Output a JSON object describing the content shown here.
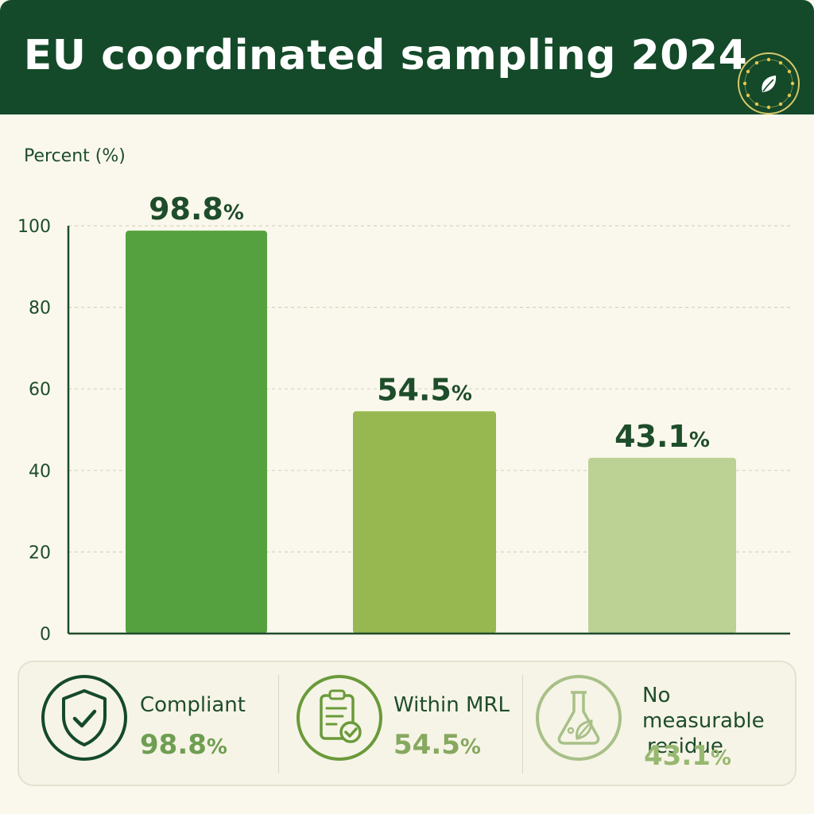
{
  "header": {
    "title": "EU coordinated sampling 2024"
  },
  "chart_data": {
    "type": "bar",
    "categories": [
      "Compliant",
      "Within MRL",
      "No measurable residue"
    ],
    "values": [
      98.8,
      54.5,
      43.1
    ],
    "data_labels": [
      "98.8",
      "54.5",
      "43.1"
    ],
    "unit": "%",
    "ylabel": "Percent (%)",
    "ylim": [
      0,
      100
    ],
    "yticks": [
      0,
      20,
      40,
      60,
      80,
      100
    ],
    "grid": true,
    "colors": [
      "#55a13f",
      "#97b850",
      "#bcd194"
    ]
  },
  "summary": {
    "cards": [
      {
        "label": "Compliant",
        "value": "98.8",
        "unit": "%",
        "icon": "shield-check-icon"
      },
      {
        "label": "Within MRL",
        "value": "54.5",
        "unit": "%",
        "icon": "clipboard-check-icon"
      },
      {
        "label": "No measurable residue",
        "label_line1": "No measurable",
        "label_line2": "residue",
        "value": "43.1",
        "unit": "%",
        "icon": "flask-leaf-icon"
      }
    ]
  },
  "colors": {
    "header_bg": "#144a2a",
    "background": "#faf8ec",
    "text": "#1e4d2b",
    "value_green": "#6f9e52"
  }
}
